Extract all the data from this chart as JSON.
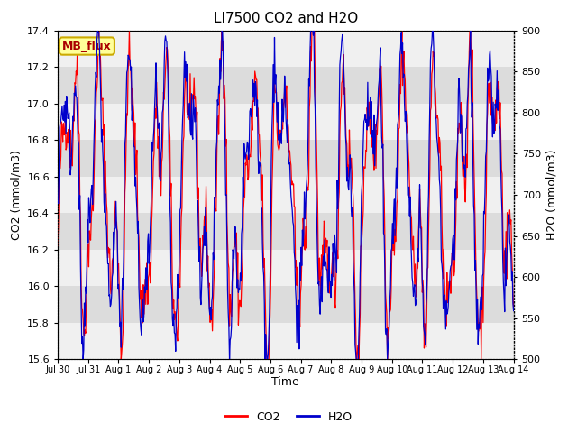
{
  "title": "LI7500 CO2 and H2O",
  "xlabel": "Time",
  "ylabel_left": "CO2 (mmol/m3)",
  "ylabel_right": "H2O (mmol/m3)",
  "ylim_left": [
    15.6,
    17.4
  ],
  "ylim_right": [
    500,
    900
  ],
  "x_tick_labels": [
    "Jul 30",
    "Jul 31",
    "Aug 1",
    "Aug 2",
    "Aug 3",
    "Aug 4",
    "Aug 5",
    "Aug 6",
    "Aug 7",
    "Aug 8",
    "Aug 9",
    "Aug 10",
    "Aug 11",
    "Aug 12",
    "Aug 13",
    "Aug 14"
  ],
  "co2_color": "#FF0000",
  "h2o_color": "#0000CC",
  "legend_label_co2": "CO2",
  "legend_label_h2o": "H2O",
  "annotation_text": "MB_flux",
  "annotation_bg": "#FFFF99",
  "annotation_border": "#CCAA00",
  "background_color": "#FFFFFF",
  "plot_bg_color": "#DCDCDC",
  "band_color_light": "#F0F0F0",
  "num_days": 15,
  "seed": 42
}
